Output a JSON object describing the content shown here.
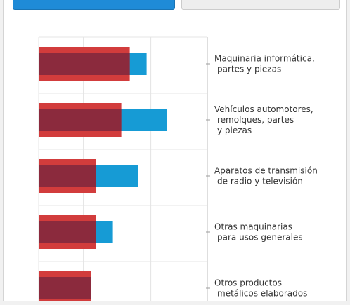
{
  "tabs": [
    {
      "label": "",
      "active": true
    },
    {
      "label": "",
      "active": false
    }
  ],
  "chart_data": {
    "type": "bar",
    "orientation": "horizontal",
    "title": "",
    "xlabel": "",
    "ylabel": "",
    "grid": true,
    "xlim": [
      0,
      100
    ],
    "categories": [
      [
        "Maquinaria informática,",
        "partes y piezas"
      ],
      [
        "Vehículos automotores,",
        "remolques, partes",
        "y piezas"
      ],
      [
        "Aparatos de transmisión",
        "de radio y televisión"
      ],
      [
        "Otras maquinarias",
        "para usos generales"
      ],
      [
        "Otros productos",
        "metálicos elaborados"
      ]
    ],
    "series": [
      {
        "values": [
          64,
          76,
          59,
          44,
          31
        ],
        "color": "#169bd5"
      },
      {
        "values": [
          54,
          49,
          34,
          34,
          31
        ],
        "color": "#d23c3c",
        "inner_color": "#8b2a3d"
      }
    ]
  }
}
